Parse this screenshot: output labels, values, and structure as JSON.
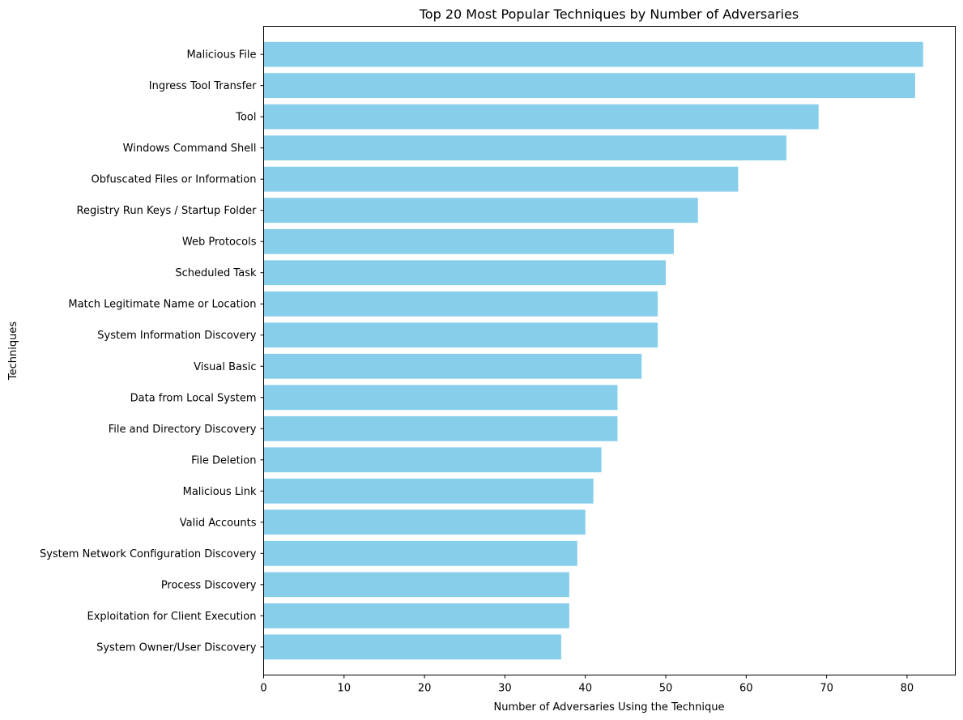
{
  "chart_data": {
    "type": "bar",
    "orientation": "horizontal",
    "title": "Top 20 Most Popular Techniques by Number of Adversaries",
    "xlabel": "Number of Adversaries Using the Technique",
    "ylabel": "Techniques",
    "xlim": [
      0,
      86
    ],
    "xticks": [
      0,
      10,
      20,
      30,
      40,
      50,
      60,
      70,
      80
    ],
    "grid": false,
    "bar_color": "#87ceeb",
    "categories": [
      "Malicious File",
      "Ingress Tool Transfer",
      "Tool",
      "Windows Command Shell",
      "Obfuscated Files or Information",
      "Registry Run Keys / Startup Folder",
      "Web Protocols",
      "Scheduled Task",
      "Match Legitimate Name or Location",
      "System Information Discovery",
      "Visual Basic",
      "Data from Local System",
      "File and Directory Discovery",
      "File Deletion",
      "Malicious Link",
      "Valid Accounts",
      "System Network Configuration Discovery",
      "Process Discovery",
      "Exploitation for Client Execution",
      "System Owner/User Discovery"
    ],
    "values": [
      82,
      81,
      69,
      65,
      59,
      54,
      51,
      50,
      49,
      49,
      47,
      44,
      44,
      42,
      41,
      40,
      39,
      38,
      38,
      37
    ]
  }
}
